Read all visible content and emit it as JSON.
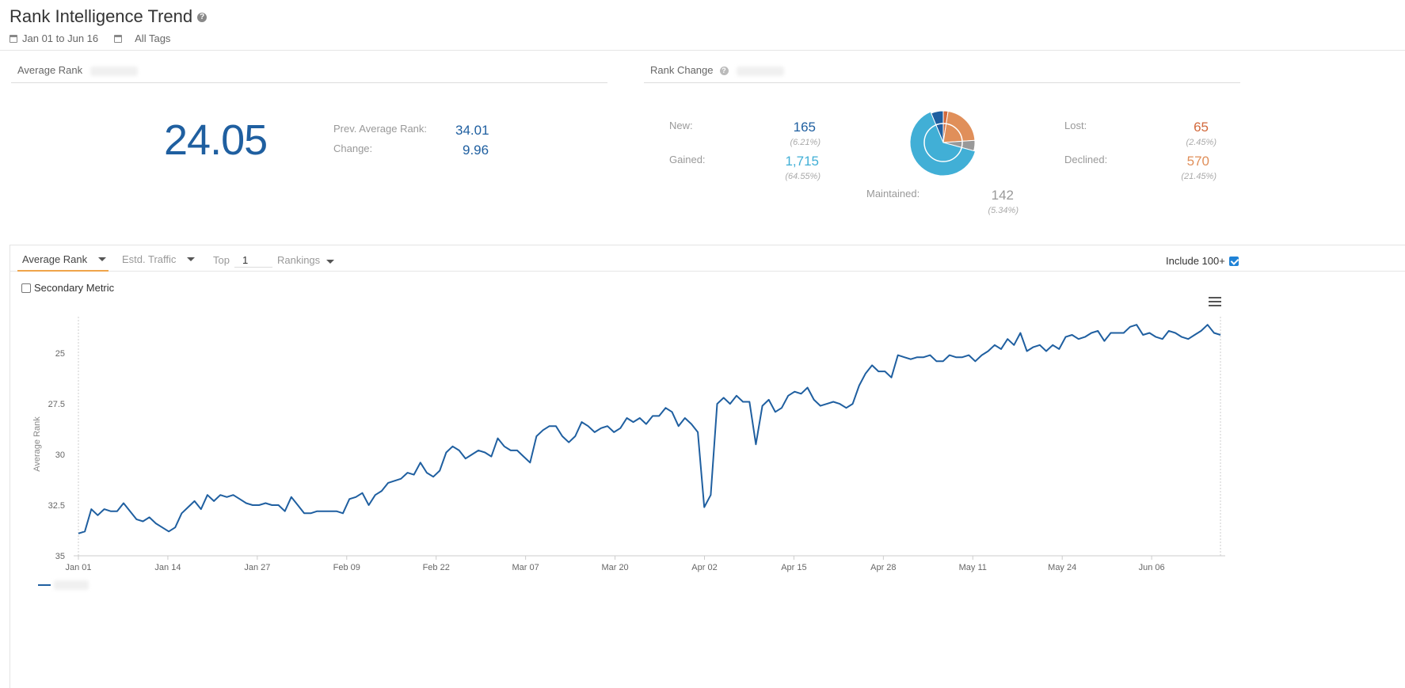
{
  "header": {
    "title": "Rank Intelligence Trend",
    "date_range": "Jan 01 to Jun 16",
    "tags": "All Tags"
  },
  "average_rank": {
    "heading": "Average Rank",
    "value": "24.05",
    "prev_label": "Prev. Average Rank:",
    "prev_value": "34.01",
    "change_label": "Change:",
    "change_value": "9.96"
  },
  "rank_change": {
    "heading": "Rank Change",
    "new": {
      "label": "New:",
      "value": "165",
      "pct": "(6.21%)",
      "color": "#1f5fa0"
    },
    "gained": {
      "label": "Gained:",
      "value": "1,715",
      "pct": "(64.55%)",
      "color": "#41afd6"
    },
    "maintained": {
      "label": "Maintained:",
      "value": "142",
      "pct": "(5.34%)",
      "color": "#999999"
    },
    "lost": {
      "label": "Lost:",
      "value": "65",
      "pct": "(2.45%)",
      "color": "#d2693c"
    },
    "declined": {
      "label": "Declined:",
      "value": "570",
      "pct": "(21.45%)",
      "color": "#e08f5a"
    }
  },
  "toolbar": {
    "tab_average_rank": "Average Rank",
    "tab_traffic": "Estd. Traffic",
    "top_label": "Top",
    "top_value": "1",
    "rankings_label": "Rankings",
    "include_label": "Include 100+",
    "secondary_label": "Secondary Metric"
  },
  "chart_data": {
    "type": "line",
    "ylabel": "Average Rank",
    "y_reversed": true,
    "ylim": [
      35,
      23.2
    ],
    "y_ticks": [
      "25",
      "27.5",
      "30",
      "32.5",
      "35"
    ],
    "y_tick_values": [
      25,
      27.5,
      30,
      32.5,
      35
    ],
    "x_ticks": [
      "Jan 01",
      "Jan 14",
      "Jan 27",
      "Feb 09",
      "Feb 22",
      "Mar 07",
      "Mar 20",
      "Apr 02",
      "Apr 15",
      "Apr 28",
      "May 11",
      "May 24",
      "Jun 06"
    ],
    "x_tick_days": [
      0,
      13,
      26,
      39,
      52,
      65,
      78,
      91,
      104,
      117,
      130,
      143,
      156
    ],
    "x_last_day": 166,
    "series": [
      {
        "name": "",
        "color": "#1f5fa0",
        "values": [
          33.9,
          33.8,
          32.7,
          33.0,
          32.7,
          32.8,
          32.8,
          32.4,
          32.8,
          33.2,
          33.3,
          33.1,
          33.4,
          33.6,
          33.8,
          33.6,
          32.9,
          32.6,
          32.3,
          32.7,
          32.0,
          32.3,
          32.0,
          32.1,
          32.0,
          32.2,
          32.4,
          32.5,
          32.5,
          32.4,
          32.5,
          32.5,
          32.8,
          32.1,
          32.5,
          32.9,
          32.9,
          32.8,
          32.8,
          32.8,
          32.8,
          32.9,
          32.2,
          32.1,
          31.9,
          32.5,
          32.0,
          31.8,
          31.4,
          31.3,
          31.2,
          30.9,
          31.0,
          30.4,
          30.9,
          31.1,
          30.8,
          29.9,
          29.6,
          29.8,
          30.2,
          30.0,
          29.8,
          29.9,
          30.1,
          29.2,
          29.6,
          29.8,
          29.8,
          30.1,
          30.4,
          29.1,
          28.8,
          28.6,
          28.6,
          29.1,
          29.4,
          29.1,
          28.4,
          28.6,
          28.9,
          28.7,
          28.6,
          28.9,
          28.7,
          28.2,
          28.4,
          28.2,
          28.5,
          28.1,
          28.1,
          27.7,
          27.9,
          28.6,
          28.2,
          28.5,
          28.9,
          32.6,
          32.0,
          27.5,
          27.2,
          27.5,
          27.1,
          27.4,
          27.4,
          29.5,
          27.6,
          27.3,
          27.9,
          27.7,
          27.1,
          26.9,
          27.0,
          26.7,
          27.3,
          27.6,
          27.5,
          27.4,
          27.5,
          27.7,
          27.5,
          26.6,
          26.0,
          25.6,
          25.9,
          25.9,
          26.2,
          25.1,
          25.2,
          25.3,
          25.2,
          25.2,
          25.1,
          25.4,
          25.4,
          25.1,
          25.2,
          25.2,
          25.1,
          25.4,
          25.1,
          24.9,
          24.6,
          24.8,
          24.3,
          24.6,
          24.0,
          24.9,
          24.7,
          24.6,
          24.9,
          24.6,
          24.8,
          24.2,
          24.1,
          24.3,
          24.2,
          24.0,
          23.9,
          24.4,
          24.0,
          24.0,
          24.0,
          23.7,
          23.6,
          24.1,
          24.0,
          24.2,
          24.3,
          23.9,
          24.0,
          24.2,
          24.3,
          24.1,
          23.9,
          23.6,
          24.0,
          24.1
        ]
      }
    ]
  }
}
